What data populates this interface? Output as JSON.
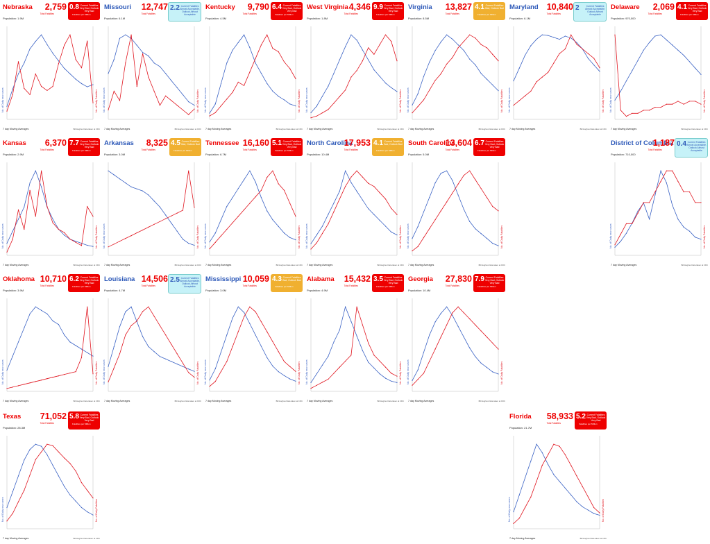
{
  "colors": {
    "cases_line": "#3a62c4",
    "deaths_line": "#e0141e",
    "red_badge": "#ee0000",
    "orange_badge": "#f0b030",
    "cyan_badge": "#c6f2f8",
    "dark_title": "#ee0000",
    "blue_title": "#2c58b8"
  },
  "common": {
    "footer_left": "7 day Moving Averages",
    "footer_right": "Bill Hughes Data taken at CDC",
    "total_fatalities_label": "Total Fatalities",
    "y_left_label": "No. of Daily new cases",
    "y_right_label": "No. of Daily Fatalities"
  },
  "badge_text": {
    "red": "Current Fatalities Very Bad, Outlook Very Bad",
    "orange": "Current Fatalities Bad, Outlook Bad",
    "cyan": "Current Fatalities Almost Acceptable, Outlook Almost Acceptable",
    "sub": "Fatalities per Million"
  },
  "panels": [
    {
      "name": "Nebraska",
      "title_color": "red",
      "deaths": "2,759",
      "rate": "0.8",
      "badge": "red",
      "population": "Population: 1.9M"
    },
    {
      "name": "Missouri",
      "title_color": "blue",
      "deaths": "12,747",
      "rate": "2.2",
      "badge": "cyan",
      "population": "Population: 6.1M"
    },
    {
      "name": "Kentucky",
      "title_color": "red",
      "deaths": "9,790",
      "rate": "6.4",
      "badge": "red",
      "population": "Population: 4.5M"
    },
    {
      "name": "West Virginia",
      "title_color": "red",
      "deaths": "4,346",
      "rate": "9.9",
      "badge": "red",
      "population": "Population: 1.8M"
    },
    {
      "name": "Virginia",
      "title_color": "blue",
      "deaths": "13,827",
      "rate": "4.1",
      "badge": "orange",
      "population": "Population: 8.5M"
    },
    {
      "name": "Maryland",
      "title_color": "blue",
      "deaths": "10,840",
      "rate": "2",
      "badge": "cyan",
      "population": "Population: 6.1M"
    },
    {
      "name": "Delaware",
      "title_color": "red",
      "deaths": "2,069",
      "rate": "4.1",
      "badge": "red",
      "population": "Population: 970,000"
    },
    {
      "name": "Kansas",
      "title_color": "red",
      "deaths": "6,370",
      "rate": "7.7",
      "badge": "red",
      "population": "Population: 2.9M"
    },
    {
      "name": "Arkansas",
      "title_color": "blue",
      "deaths": "8,325",
      "rate": "4.5",
      "badge": "orange",
      "population": "Population: 3.0M"
    },
    {
      "name": "Tennessee",
      "title_color": "red",
      "deaths": "16,160",
      "rate": "5.1",
      "badge": "red",
      "population": "Population: 6.7M"
    },
    {
      "name": "North Carolina",
      "title_color": "blue",
      "deaths": "17,953",
      "rate": "4.1",
      "badge": "orange",
      "population": "Population: 10.4M"
    },
    {
      "name": "South Carolina",
      "title_color": "red",
      "deaths": "13,604",
      "rate": "6.7",
      "badge": "red",
      "population": "Population: 5.0M"
    },
    {
      "name": "District of Columbia",
      "title_color": "blue",
      "deaths": "1,187",
      "rate": "0.4",
      "badge": "cyan",
      "population": "Population: 710,000"
    },
    {
      "name": "Oklahoma",
      "title_color": "red",
      "deaths": "10,710",
      "rate": "6.2",
      "badge": "red",
      "population": "Population: 3.9M"
    },
    {
      "name": "Louisiana",
      "title_color": "blue",
      "deaths": "14,506",
      "rate": "2.5",
      "badge": "cyan",
      "population": "Population: 4.7M"
    },
    {
      "name": "Mississippi",
      "title_color": "blue",
      "deaths": "10,059",
      "rate": "4.3",
      "badge": "orange",
      "population": "Population: 3.0M"
    },
    {
      "name": "Alabama",
      "title_color": "red",
      "deaths": "15,432",
      "rate": "3.5",
      "badge": "red",
      "population": "Population: 4.9M"
    },
    {
      "name": "Georgia",
      "title_color": "red",
      "deaths": "27,830",
      "rate": "7.9",
      "badge": "red",
      "population": "Population: 10.4M"
    },
    {
      "name": "Texas",
      "title_color": "red",
      "deaths": "71,052",
      "rate": "5.8",
      "badge": "red",
      "population": "Population: 28.3M"
    },
    {
      "name": "Florida",
      "title_color": "red",
      "deaths": "58,933",
      "rate": "5.2",
      "badge": "red",
      "population": "Population: 21.7M"
    }
  ],
  "chart_data": [
    {
      "type": "line",
      "panel": "Nebraska",
      "series": [
        {
          "name": "cases",
          "values": [
            120,
            280,
            420,
            520,
            650,
            720,
            780,
            690,
            610,
            540,
            470,
            420,
            370,
            330,
            300,
            320
          ]
        },
        {
          "name": "deaths",
          "values": [
            0.4,
            1.2,
            2.8,
            1.5,
            1.2,
            2.2,
            1.6,
            1.4,
            1.6,
            2.7,
            3.6,
            4.1,
            2.9,
            2.5,
            3.8,
            0.8
          ]
        }
      ]
    },
    {
      "type": "line",
      "panel": "Missouri",
      "series": [
        {
          "name": "cases",
          "values": [
            1300,
            1700,
            2300,
            2400,
            2300,
            2100,
            1900,
            1800,
            1600,
            1500,
            1300,
            1100,
            900,
            700,
            500,
            400
          ]
        },
        {
          "name": "deaths",
          "values": [
            2,
            6,
            4,
            12,
            18,
            7,
            14,
            9,
            6,
            3,
            5,
            4,
            3,
            2,
            1,
            2.2
          ]
        }
      ]
    },
    {
      "type": "line",
      "panel": "Kentucky",
      "series": [
        {
          "name": "cases",
          "values": [
            120,
            300,
            700,
            1100,
            1350,
            1500,
            1650,
            1400,
            1100,
            900,
            700,
            550,
            450,
            380,
            300,
            260
          ]
        },
        {
          "name": "deaths",
          "values": [
            1,
            2,
            4,
            6,
            8,
            11,
            10,
            14,
            18,
            22,
            25,
            21,
            20,
            17,
            15,
            12
          ]
        }
      ]
    },
    {
      "type": "line",
      "panel": "West Virginia",
      "series": [
        {
          "name": "cases",
          "values": [
            100,
            200,
            350,
            500,
            700,
            900,
            1100,
            1280,
            1200,
            1050,
            900,
            750,
            650,
            550,
            480,
            420
          ]
        },
        {
          "name": "deaths",
          "values": [
            0.5,
            1,
            2,
            3,
            5,
            7,
            9,
            13,
            15,
            18,
            22,
            20,
            23,
            26,
            24,
            18
          ]
        }
      ]
    },
    {
      "type": "line",
      "panel": "Virginia",
      "series": [
        {
          "name": "cases",
          "values": [
            500,
            900,
            1500,
            2000,
            2400,
            2700,
            2950,
            2800,
            2600,
            2400,
            2100,
            1900,
            1600,
            1400,
            1200,
            1000
          ]
        },
        {
          "name": "deaths",
          "values": [
            2,
            4,
            6,
            9,
            12,
            14,
            17,
            19,
            22,
            24,
            26,
            25,
            23,
            22,
            20,
            18
          ]
        }
      ]
    },
    {
      "type": "line",
      "panel": "Maryland",
      "series": [
        {
          "name": "cases",
          "values": [
            600,
            800,
            1000,
            1150,
            1250,
            1320,
            1310,
            1280,
            1250,
            1300,
            1270,
            1200,
            1100,
            950,
            850,
            750
          ]
        },
        {
          "name": "deaths",
          "values": [
            3,
            4,
            5,
            6,
            8,
            9,
            10,
            12,
            14,
            15,
            18,
            16,
            15,
            14,
            13,
            11
          ]
        }
      ]
    },
    {
      "type": "line",
      "panel": "Delaware",
      "series": [
        {
          "name": "cases",
          "values": [
            150,
            220,
            300,
            380,
            460,
            540,
            600,
            650,
            660,
            620,
            580,
            540,
            500,
            450,
            400,
            350
          ]
        },
        {
          "name": "deaths",
          "values": [
            28,
            3,
            1,
            2,
            2,
            3,
            3,
            4,
            4,
            5,
            5,
            6,
            5,
            6,
            6,
            5
          ]
        }
      ]
    },
    {
      "type": "line",
      "panel": "Kansas",
      "series": [
        {
          "name": "cases",
          "values": [
            300,
            600,
            900,
            1200,
            1800,
            2100,
            1700,
            1200,
            900,
            650,
            500,
            400,
            350,
            300,
            250,
            220
          ]
        },
        {
          "name": "deaths",
          "values": [
            1,
            5,
            14,
            8,
            20,
            12,
            26,
            15,
            10,
            8,
            7,
            5,
            4,
            3,
            15,
            12
          ]
        }
      ]
    },
    {
      "type": "line",
      "panel": "Arkansas",
      "series": [
        {
          "name": "cases",
          "values": [
            2100,
            2000,
            1900,
            1800,
            1700,
            1650,
            1600,
            1500,
            1350,
            1200,
            1000,
            800,
            600,
            400,
            300,
            250
          ]
        },
        {
          "name": "deaths",
          "values": [
            3,
            4,
            5,
            6,
            7,
            8,
            9,
            10,
            11,
            12,
            13,
            14,
            15,
            16,
            30,
            17
          ]
        }
      ]
    },
    {
      "type": "line",
      "panel": "Tennessee",
      "series": [
        {
          "name": "cases",
          "values": [
            300,
            500,
            800,
            1100,
            1300,
            1500,
            1700,
            1900,
            1650,
            1300,
            1000,
            800,
            650,
            500,
            400,
            350
          ]
        },
        {
          "name": "deaths",
          "values": [
            1,
            2,
            3,
            4,
            5,
            6,
            7,
            8,
            9,
            10,
            12,
            13,
            11,
            10,
            8,
            6
          ]
        }
      ]
    },
    {
      "type": "line",
      "panel": "North Carolina",
      "series": [
        {
          "name": "cases",
          "values": [
            400,
            700,
            1000,
            1400,
            1800,
            2200,
            2900,
            2500,
            2200,
            1900,
            1600,
            1400,
            1200,
            1000,
            800,
            700
          ]
        },
        {
          "name": "deaths",
          "values": [
            2,
            4,
            7,
            10,
            14,
            18,
            22,
            25,
            27,
            25,
            23,
            22,
            20,
            18,
            15,
            13
          ]
        }
      ]
    },
    {
      "type": "line",
      "panel": "South Carolina",
      "series": [
        {
          "name": "cases",
          "values": [
            700,
            1200,
            1800,
            2400,
            3000,
            3400,
            3500,
            3100,
            2500,
            1900,
            1400,
            1100,
            900,
            700,
            500,
            400
          ]
        },
        {
          "name": "deaths",
          "values": [
            1,
            2,
            4,
            6,
            8,
            10,
            12,
            14,
            16,
            18,
            19,
            17,
            15,
            13,
            11,
            10
          ]
        }
      ]
    },
    {
      "type": "line",
      "panel": "District of Columbia",
      "series": [
        {
          "name": "cases",
          "values": [
            40,
            70,
            110,
            160,
            220,
            260,
            180,
            300,
            420,
            360,
            250,
            180,
            140,
            120,
            90,
            80
          ]
        },
        {
          "name": "deaths",
          "values": [
            0.1,
            0.2,
            0.3,
            0.3,
            0.4,
            0.5,
            0.5,
            0.6,
            0.7,
            0.8,
            0.8,
            0.7,
            0.6,
            0.6,
            0.5,
            0.5
          ]
        }
      ]
    },
    {
      "type": "line",
      "panel": "Oklahoma",
      "series": [
        {
          "name": "cases",
          "values": [
            300,
            500,
            700,
            900,
            1100,
            1200,
            1150,
            1100,
            1000,
            950,
            800,
            700,
            650,
            600,
            550,
            500
          ]
        },
        {
          "name": "deaths",
          "values": [
            1,
            1.5,
            2,
            2.5,
            3,
            3.5,
            4,
            4.5,
            5,
            5.5,
            6,
            6.5,
            7,
            12,
            30,
            6.2
          ]
        }
      ]
    },
    {
      "type": "line",
      "panel": "Louisiana",
      "series": [
        {
          "name": "cases",
          "values": [
            500,
            900,
            1300,
            1600,
            1700,
            1400,
            1100,
            900,
            800,
            700,
            650,
            600,
            550,
            500,
            450,
            400
          ]
        },
        {
          "name": "deaths",
          "values": [
            2,
            5,
            8,
            12,
            14,
            15,
            17,
            18,
            16,
            14,
            12,
            10,
            8,
            6,
            4,
            3
          ]
        }
      ]
    },
    {
      "type": "line",
      "panel": "Mississippi",
      "series": [
        {
          "name": "cases",
          "values": [
            200,
            400,
            700,
            1000,
            1300,
            1500,
            1400,
            1200,
            1000,
            800,
            600,
            450,
            350,
            280,
            220,
            180
          ]
        },
        {
          "name": "deaths",
          "values": [
            1,
            2,
            4,
            6,
            9,
            12,
            15,
            17,
            16,
            14,
            12,
            10,
            8,
            6,
            5,
            4
          ]
        }
      ]
    },
    {
      "type": "line",
      "panel": "Alabama",
      "series": [
        {
          "name": "cases",
          "values": [
            300,
            600,
            900,
            1200,
            1700,
            2100,
            2900,
            2400,
            1900,
            1400,
            1000,
            800,
            600,
            450,
            350,
            300
          ]
        },
        {
          "name": "deaths",
          "values": [
            1,
            2,
            3,
            4,
            6,
            8,
            10,
            12,
            28,
            22,
            16,
            12,
            10,
            8,
            6,
            5
          ]
        }
      ]
    },
    {
      "type": "line",
      "panel": "Georgia",
      "series": [
        {
          "name": "cases",
          "values": [
            500,
            1000,
            1800,
            2600,
            3200,
            3600,
            3900,
            3500,
            3000,
            2500,
            2000,
            1600,
            1300,
            1100,
            900,
            800
          ]
        },
        {
          "name": "deaths",
          "values": [
            2,
            4,
            6,
            10,
            14,
            18,
            22,
            26,
            28,
            26,
            24,
            22,
            20,
            18,
            16,
            14
          ]
        }
      ]
    },
    {
      "type": "line",
      "panel": "Texas",
      "series": [
        {
          "name": "cases",
          "values": [
            2000,
            3500,
            5000,
            6500,
            7500,
            8000,
            7800,
            7000,
            6000,
            5000,
            4000,
            3200,
            2600,
            2000,
            1600,
            1300
          ]
        },
        {
          "name": "deaths",
          "values": [
            10,
            20,
            35,
            50,
            70,
            90,
            100,
            110,
            108,
            100,
            92,
            85,
            75,
            60,
            50,
            40
          ]
        }
      ]
    },
    {
      "type": "line",
      "panel": "Florida",
      "series": [
        {
          "name": "cases",
          "values": [
            1000,
            2000,
            3000,
            4000,
            5000,
            4500,
            3800,
            3200,
            2800,
            2400,
            2000,
            1600,
            1300,
            1100,
            900,
            800
          ]
        },
        {
          "name": "deaths",
          "values": [
            5,
            10,
            20,
            30,
            45,
            60,
            70,
            80,
            78,
            70,
            60,
            50,
            40,
            30,
            20,
            15
          ]
        }
      ]
    }
  ]
}
